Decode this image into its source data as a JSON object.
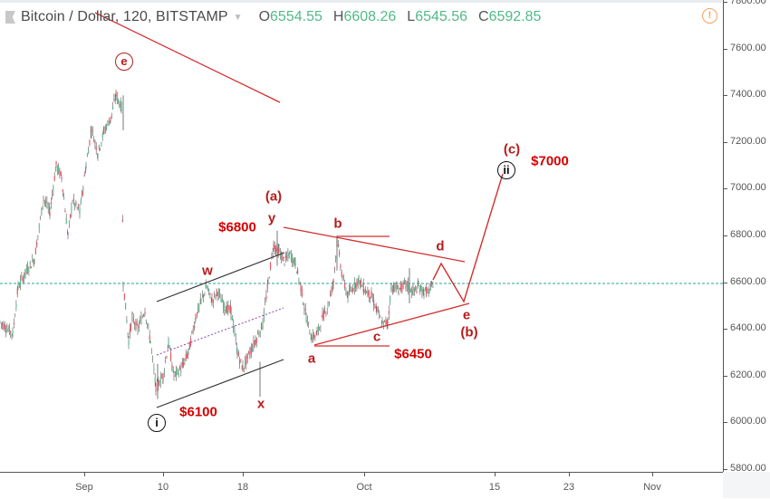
{
  "header": {
    "symbol": "Bitcoin / Dollar, 120, BITSTAMP",
    "ohlc": [
      {
        "k": "O",
        "v": "6554.55"
      },
      {
        "k": "H",
        "v": "6608.26"
      },
      {
        "k": "L",
        "v": "6545.56"
      },
      {
        "k": "C",
        "v": "6592.85"
      }
    ],
    "alert_icon": "!"
  },
  "y_axis": {
    "labels": [
      "7800.00",
      "7600.00",
      "7400.00",
      "7200.00",
      "7000.00",
      "6800.00",
      "6600.00",
      "6400.00",
      "6200.00",
      "6000.00",
      "5800.00"
    ]
  },
  "x_axis": {
    "labels": [
      {
        "t": "Sep",
        "x": 93
      },
      {
        "t": "10",
        "x": 180
      },
      {
        "t": "18",
        "x": 268
      },
      {
        "t": "Oct",
        "x": 402
      },
      {
        "t": "15",
        "x": 546
      },
      {
        "t": "23",
        "x": 628
      },
      {
        "t": "Nov",
        "x": 720
      }
    ]
  },
  "annotations": {
    "e_circle": "e",
    "a_paren": "(a)",
    "y": "y",
    "w": "w",
    "x": "x",
    "b": "b",
    "a": "a",
    "c": "c",
    "d": "d",
    "e": "e",
    "b_paren": "(b)",
    "c_paren": "(c)",
    "ii_circle": "ii",
    "i_circle": "i",
    "p6800": "$6800",
    "p6450": "$6450",
    "p6100": "$6100",
    "p7000": "$7000"
  },
  "colors": {
    "up": "#53b987",
    "down": "#eb4d5c",
    "wave": "#d32f2f",
    "channel": "#333333",
    "midline": "#8e44ad",
    "lastprice": "#26a69a"
  },
  "chart_data": {
    "type": "candlestick",
    "title": "Bitcoin / Dollar, 120, BITSTAMP",
    "ohlc_last": {
      "open": 6554.55,
      "high": 6608.26,
      "low": 6545.56,
      "close": 6592.85
    },
    "ylim": [
      5750,
      7810
    ],
    "y_ticks": [
      5800,
      6000,
      6200,
      6400,
      6600,
      6800,
      7000,
      7200,
      7400,
      7600,
      7800
    ],
    "x_ticks": [
      "Sep",
      "10",
      "18",
      "Oct",
      "15",
      "23",
      "Nov"
    ],
    "last_price_line": 6592.85,
    "price_path_approx": [
      {
        "date": "late Aug",
        "price": 6450
      },
      {
        "date": "Aug 30",
        "price": 6950
      },
      {
        "date": "Sep 1",
        "price": 7100
      },
      {
        "date": "Sep 5",
        "price": 7400
      },
      {
        "date": "Sep 6",
        "price": 6400
      },
      {
        "date": "Sep 9",
        "price": 6150
      },
      {
        "date": "Sep 13",
        "price": 6550
      },
      {
        "date": "Sep 17",
        "price": 6250
      },
      {
        "date": "Sep 20",
        "price": 6450
      },
      {
        "date": "Sep 22",
        "price": 6780
      },
      {
        "date": "Sep 24",
        "price": 6700
      },
      {
        "date": "Sep 26",
        "price": 6350
      },
      {
        "date": "Sep 28",
        "price": 6780
      },
      {
        "date": "Sep 30",
        "price": 6580
      },
      {
        "date": "Oct 3",
        "price": 6600
      },
      {
        "date": "Oct 4",
        "price": 6420
      },
      {
        "date": "Oct 5",
        "price": 6590
      },
      {
        "date": "Oct 9",
        "price": 6590
      }
    ],
    "elliott_labels": [
      "(e)",
      "w",
      "x",
      "y",
      "(a)",
      "a",
      "b",
      "c",
      "d",
      "e",
      "(b)",
      "(c)",
      "(i)",
      "(ii)"
    ],
    "price_targets": [
      "$6800",
      "$6450",
      "$6100",
      "$7000"
    ]
  }
}
